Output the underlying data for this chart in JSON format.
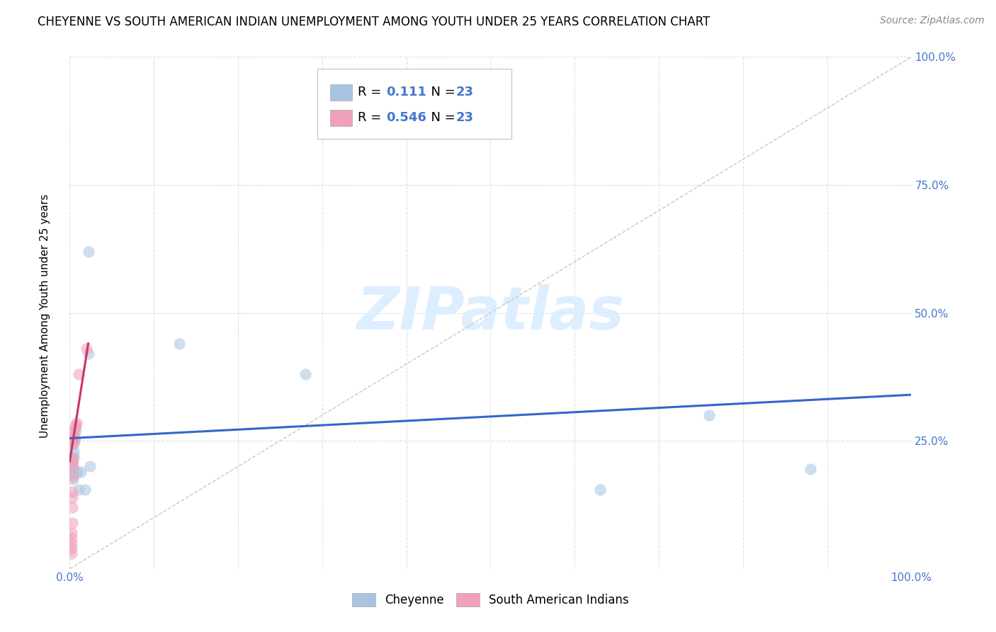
{
  "title": "CHEYENNE VS SOUTH AMERICAN INDIAN UNEMPLOYMENT AMONG YOUTH UNDER 25 YEARS CORRELATION CHART",
  "source": "Source: ZipAtlas.com",
  "ylabel": "Unemployment Among Youth under 25 years",
  "xlim": [
    0.0,
    1.0
  ],
  "ylim": [
    0.0,
    1.0
  ],
  "ytick_values": [
    0.0,
    0.25,
    0.5,
    0.75,
    1.0
  ],
  "ytick_labels": [
    "",
    "25.0%",
    "50.0%",
    "75.0%",
    "100.0%"
  ],
  "xtick_values": [
    0.0,
    0.1,
    0.2,
    0.3,
    0.4,
    0.5,
    0.6,
    0.7,
    0.8,
    0.9,
    1.0
  ],
  "xtick_labels": [
    "0.0%",
    "",
    "",
    "",
    "",
    "",
    "",
    "",
    "",
    "",
    "100.0%"
  ],
  "legend_r_cheyenne": "0.111",
  "legend_n_cheyenne": "23",
  "legend_r_south_american": "0.546",
  "legend_n_south_american": "23",
  "cheyenne_color": "#a8c4e0",
  "south_american_color": "#f0a0b8",
  "cheyenne_line_color": "#3366cc",
  "south_american_line_color": "#cc3366",
  "diagonal_color": "#c8c8c8",
  "watermark_color": "#ddeeff",
  "cheyenne_scatter_x": [
    0.022,
    0.022,
    0.003,
    0.003,
    0.003,
    0.004,
    0.004,
    0.004,
    0.005,
    0.005,
    0.005,
    0.006,
    0.007,
    0.009,
    0.011,
    0.013,
    0.018,
    0.024,
    0.13,
    0.28,
    0.63,
    0.76,
    0.88
  ],
  "cheyenne_scatter_y": [
    0.42,
    0.62,
    0.215,
    0.21,
    0.2,
    0.19,
    0.185,
    0.175,
    0.22,
    0.23,
    0.245,
    0.255,
    0.27,
    0.19,
    0.155,
    0.19,
    0.155,
    0.2,
    0.44,
    0.38,
    0.155,
    0.3,
    0.195
  ],
  "south_american_scatter_x": [
    0.002,
    0.002,
    0.002,
    0.002,
    0.002,
    0.003,
    0.003,
    0.003,
    0.003,
    0.004,
    0.004,
    0.004,
    0.004,
    0.004,
    0.005,
    0.005,
    0.005,
    0.005,
    0.006,
    0.007,
    0.008,
    0.011,
    0.02
  ],
  "south_american_scatter_y": [
    0.07,
    0.06,
    0.05,
    0.04,
    0.03,
    0.09,
    0.12,
    0.14,
    0.15,
    0.18,
    0.2,
    0.21,
    0.215,
    0.245,
    0.25,
    0.255,
    0.26,
    0.27,
    0.275,
    0.28,
    0.285,
    0.38,
    0.43
  ],
  "cheyenne_line_x": [
    0.0,
    1.0
  ],
  "cheyenne_line_y": [
    0.255,
    0.34
  ],
  "south_american_line_x": [
    0.0,
    0.022
  ],
  "south_american_line_y": [
    0.21,
    0.44
  ],
  "diagonal_line_x": [
    0.0,
    1.0
  ],
  "diagonal_line_y": [
    0.0,
    1.0
  ],
  "marker_size": 140,
  "marker_alpha": 0.55,
  "title_fontsize": 12,
  "source_fontsize": 10,
  "axis_label_fontsize": 11,
  "tick_fontsize": 11,
  "legend_fontsize": 13,
  "watermark_fontsize": 60
}
